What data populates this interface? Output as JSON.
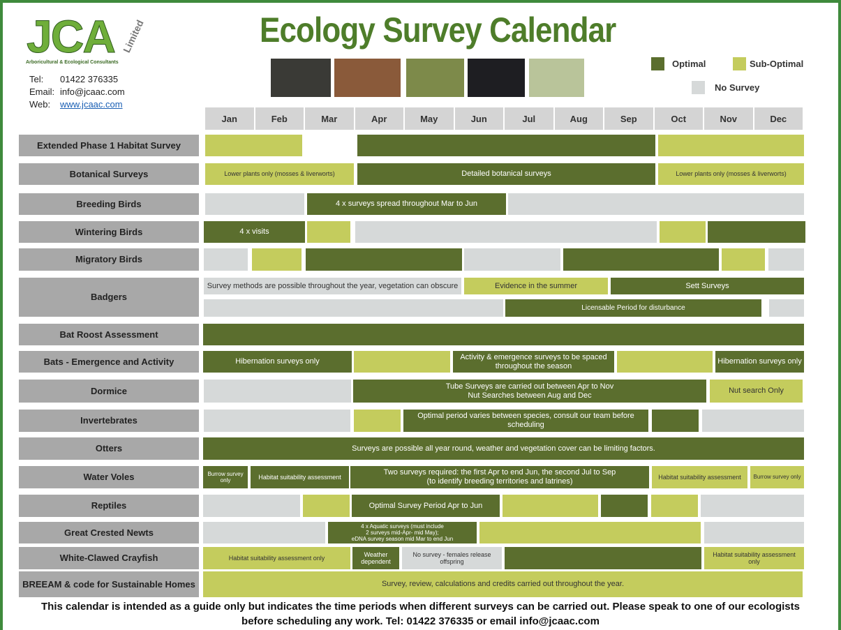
{
  "header": {
    "logo": "JCA",
    "logo_sub": "Limited",
    "company": "Arboricultural & Ecological Consultants",
    "contact": [
      {
        "label": "Tel:",
        "value": "01422 376335"
      },
      {
        "label": "Email:",
        "value": "info@jcaac.com"
      },
      {
        "label": "Web:",
        "value": "www.jcaac.com"
      }
    ],
    "title": "Ecology Survey Calendar"
  },
  "legend": [
    "Optimal",
    "Sub-Optimal",
    "No Survey"
  ],
  "months": [
    "Jan",
    "Feb",
    "Mar",
    "Apr",
    "May",
    "Jun",
    "Jul",
    "Aug",
    "Sep",
    "Oct",
    "Nov",
    "Dec"
  ],
  "rows": [
    {
      "label": "Extended Phase 1 Habitat Survey",
      "texts": []
    },
    {
      "label": "Botanical Surveys",
      "texts": [
        "Lower plants only (mosses & liverworts)",
        "Detailed botanical surveys",
        "Lower plants only (mosses & liverworts)"
      ]
    },
    {
      "label": "Breeding Birds",
      "texts": [
        "4 x surveys spread throughout Mar to Jun"
      ]
    },
    {
      "label": "Wintering Birds",
      "texts": [
        "4 x visits"
      ]
    },
    {
      "label": "Migratory Birds",
      "texts": []
    },
    {
      "label": "Badgers",
      "texts": [
        "Survey methods are possible throughout the year, vegetation can obscure",
        "Evidence in the summer",
        "Sett Surveys",
        "Licensable Period for disturbance"
      ]
    },
    {
      "label": "Bat Roost Assessment",
      "texts": []
    },
    {
      "label": "Bats - Emergence and Activity",
      "texts": [
        "Hibernation surveys only",
        "Activity & emergence surveys to be spaced throughout the season",
        "Hibernation surveys only"
      ]
    },
    {
      "label": "Dormice",
      "texts": [
        "Tube Surveys are carried out between Apr to Nov",
        "Nut Searches between Aug and Dec",
        "Nut search Only"
      ]
    },
    {
      "label": "Invertebrates",
      "texts": [
        "Optimal period varies between species, consult our team before scheduling"
      ]
    },
    {
      "label": "Otters",
      "texts": [
        "Surveys are possible all year round, weather and vegetation cover can be limiting factors."
      ]
    },
    {
      "label": "Water Voles",
      "texts": [
        "Burrow survey only",
        "Habitat suitability assessment",
        "Two surveys required: the first Apr to end Jun, the second Jul to Sep",
        "(to identify breeding territories and latrines)",
        "Habitat suitability assessment",
        "Burrow survey only"
      ]
    },
    {
      "label": "Reptiles",
      "texts": [
        "Optimal Survey Period Apr to Jun"
      ]
    },
    {
      "label": "Great Crested Newts",
      "texts": [
        "4 x Aquatic surveys (must include",
        "2 surveys mid-Apr- mid May);",
        "eDNA survey season mid Mar to end Jun"
      ]
    },
    {
      "label": "White-Clawed Crayfish",
      "texts": [
        "Habitat suitability assessment only",
        "Weather dependent",
        "No survey - females release offspring",
        "Habitat suitability assessment only"
      ]
    },
    {
      "label": "BREEAM & code for Sustainable Homes",
      "texts": [
        "Survey, review, calculations and credits carried out throughout the year."
      ]
    }
  ],
  "footer": "This calendar is intended as a guide only but indicates the time periods when different surveys can be carried out. Please speak to one of our ecologists before scheduling any work.  Tel: 01422 376335 or email info@jcaac.com"
}
